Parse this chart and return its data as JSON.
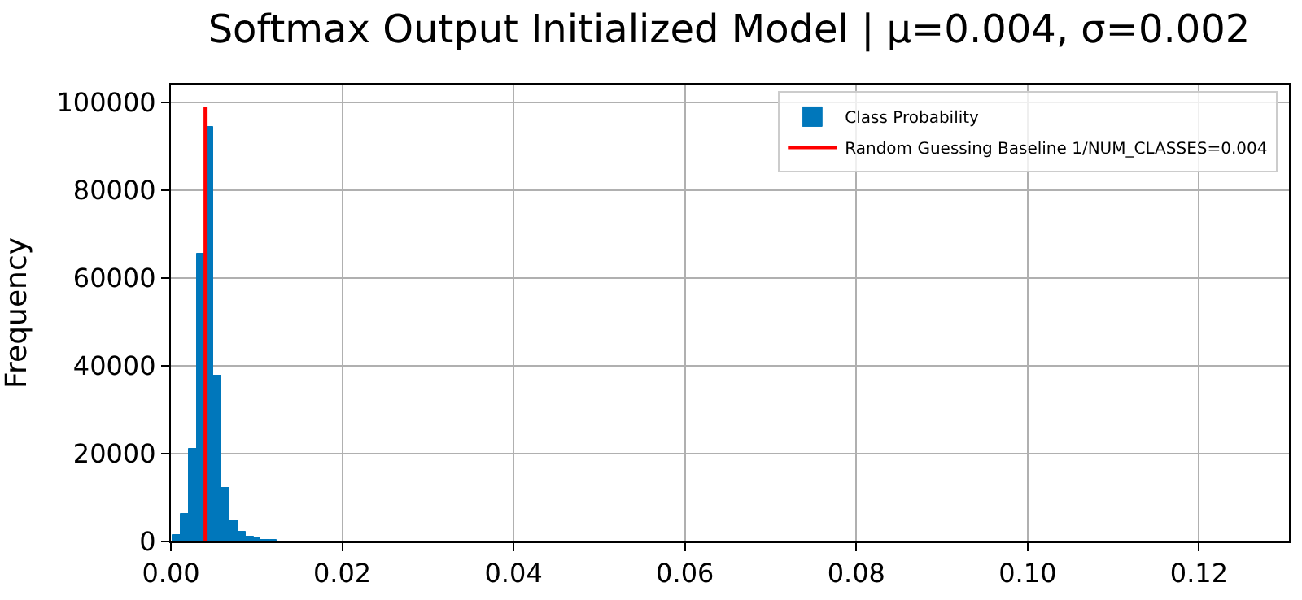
{
  "chart_data": {
    "type": "histogram",
    "title": "Softmax Output Initialized Model | μ=0.004, σ=0.002",
    "ylabel": "Frequency",
    "bins": [
      0.0002,
      0.0011,
      0.0021,
      0.003,
      0.004,
      0.0049,
      0.0058,
      0.0068,
      0.0077,
      0.0087,
      0.0096,
      0.0105,
      0.0115,
      0.0124
    ],
    "series": [
      {
        "name": "Class Probability",
        "color": "#0077bb",
        "values": [
          1300,
          6200,
          21100,
          65400,
          94500,
          37900,
          12100,
          4700,
          2200,
          1100,
          600,
          300,
          300
        ]
      },
      {
        "name": "Random Guessing Baseline 1/NUM_CLASSES=0.004",
        "type": "line",
        "color": "#ff0000",
        "x": [
          0.004,
          0.004
        ],
        "values": [
          0,
          99000
        ]
      }
    ],
    "xlim": [
      0,
      0.1305
    ],
    "xticks": [
      {
        "value": 0,
        "label": "0.00"
      },
      {
        "value": 0.02,
        "label": "0.02"
      },
      {
        "value": 0.04,
        "label": "0.04"
      },
      {
        "value": 0.06,
        "label": "0.06"
      },
      {
        "value": 0.08,
        "label": "0.08"
      },
      {
        "value": 0.1,
        "label": "0.10"
      },
      {
        "value": 0.12,
        "label": "0.12"
      }
    ],
    "ylim": [
      0,
      104000
    ],
    "yticks": [
      0,
      20000,
      40000,
      60000,
      80000,
      100000
    ],
    "grid": true,
    "legend": "top right"
  }
}
